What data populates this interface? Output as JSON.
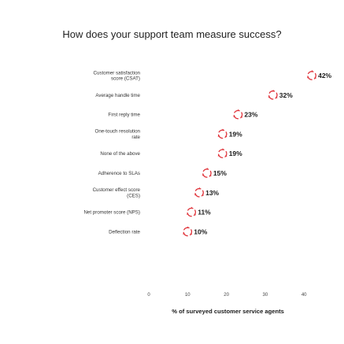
{
  "chart_data": {
    "type": "scatter",
    "title": "How does your support team measure success?",
    "xlabel": "% of surveyed customer service agents",
    "ylabel": "",
    "xlim": [
      0,
      40
    ],
    "xticks": [
      0,
      10,
      20,
      30,
      40
    ],
    "grid": false,
    "legend": "none",
    "categories": [
      "Customer satisfaction score (CSAT)",
      "Average handle time",
      "First reply time",
      "One-touch resolution rate",
      "None of the above",
      "Adherence to SLAs",
      "Customer effect score (CES)",
      "Net promoter score (NPS)",
      "Deflection rate"
    ],
    "values": [
      42,
      32,
      23,
      19,
      19,
      15,
      13,
      11,
      10
    ],
    "value_labels": [
      "42%",
      "32%",
      "23%",
      "19%",
      "19%",
      "15%",
      "13%",
      "11%",
      "10%"
    ],
    "marker": "circular-arrows-icon",
    "marker_color": "#e0343b"
  }
}
